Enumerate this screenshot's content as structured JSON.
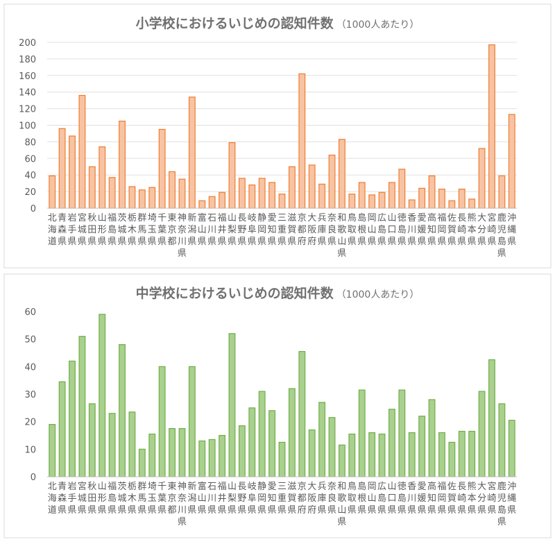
{
  "chart_data": [
    {
      "type": "bar",
      "title": "小学校におけるいじめの認知件数",
      "subtitle": "（1000人あたり）",
      "categories": [
        "北海道",
        "青森県",
        "岩手県",
        "宮城県",
        "秋田県",
        "山形県",
        "福島県",
        "茨城県",
        "栃木県",
        "群馬県",
        "埼玉県",
        "千葉県",
        "東京都",
        "神奈川県",
        "新潟県",
        "富山県",
        "石川県",
        "福井県",
        "山梨県",
        "長野県",
        "岐阜県",
        "静岡県",
        "愛知県",
        "三重県",
        "滋賀県",
        "京都府",
        "大阪府",
        "兵庫県",
        "奈良県",
        "和歌山県",
        "鳥取県",
        "島根県",
        "岡山県",
        "広島県",
        "山口県",
        "徳島県",
        "香川県",
        "愛媛県",
        "高知県",
        "福岡県",
        "佐賀県",
        "長崎県",
        "熊本県",
        "大分県",
        "宮崎県",
        "鹿児島県",
        "沖縄県"
      ],
      "values": [
        39,
        96,
        87,
        136,
        50,
        74,
        37,
        105,
        26,
        22,
        25,
        95,
        44,
        35,
        134,
        9,
        14,
        19,
        79,
        36,
        28,
        36,
        31,
        17,
        50,
        162,
        52,
        29,
        64,
        83,
        17,
        31,
        16,
        19,
        31,
        47,
        10,
        24,
        39,
        23,
        9,
        23,
        11,
        72,
        197,
        39,
        113
      ],
      "color": "#f8c3a3",
      "edge_color": "#ed7d31",
      "ylim": [
        0,
        200
      ],
      "yticks": [
        0,
        20,
        40,
        60,
        80,
        100,
        120,
        140,
        160,
        180,
        200
      ],
      "grid": true
    },
    {
      "type": "bar",
      "title": "中学校におけるいじめの認知件数",
      "subtitle": "（1000人あたり）",
      "categories": [
        "北海道",
        "青森県",
        "岩手県",
        "宮城県",
        "秋田県",
        "山形県",
        "福島県",
        "茨城県",
        "栃木県",
        "群馬県",
        "埼玉県",
        "千葉県",
        "東京都",
        "神奈川県",
        "新潟県",
        "富山県",
        "石川県",
        "福井県",
        "山梨県",
        "長野県",
        "岐阜県",
        "静岡県",
        "愛知県",
        "三重県",
        "滋賀県",
        "京都府",
        "大阪府",
        "兵庫県",
        "奈良県",
        "和歌山県",
        "鳥取県",
        "島根県",
        "岡山県",
        "広島県",
        "山口県",
        "徳島県",
        "香川県",
        "愛媛県",
        "高知県",
        "福岡県",
        "佐賀県",
        "長崎県",
        "熊本県",
        "大分県",
        "宮崎県",
        "鹿児島県",
        "沖縄県"
      ],
      "values": [
        19,
        34.5,
        42,
        51,
        26.5,
        59,
        23,
        48,
        23.5,
        10,
        15.5,
        40,
        17.5,
        17.5,
        40,
        13,
        13.5,
        15,
        52,
        18.5,
        25,
        31,
        24,
        12.5,
        32,
        45.5,
        17,
        27,
        21.5,
        11.5,
        15.5,
        31.5,
        16,
        15.5,
        24.5,
        31.5,
        16,
        22,
        28,
        16,
        12.5,
        16.5,
        16.5,
        31,
        42.5,
        26.5,
        20.5
      ],
      "color": "#a9d08e",
      "edge_color": "#70ad47",
      "ylim": [
        0,
        60
      ],
      "yticks": [
        0,
        10,
        20,
        30,
        40,
        50,
        60
      ],
      "grid": false
    }
  ]
}
